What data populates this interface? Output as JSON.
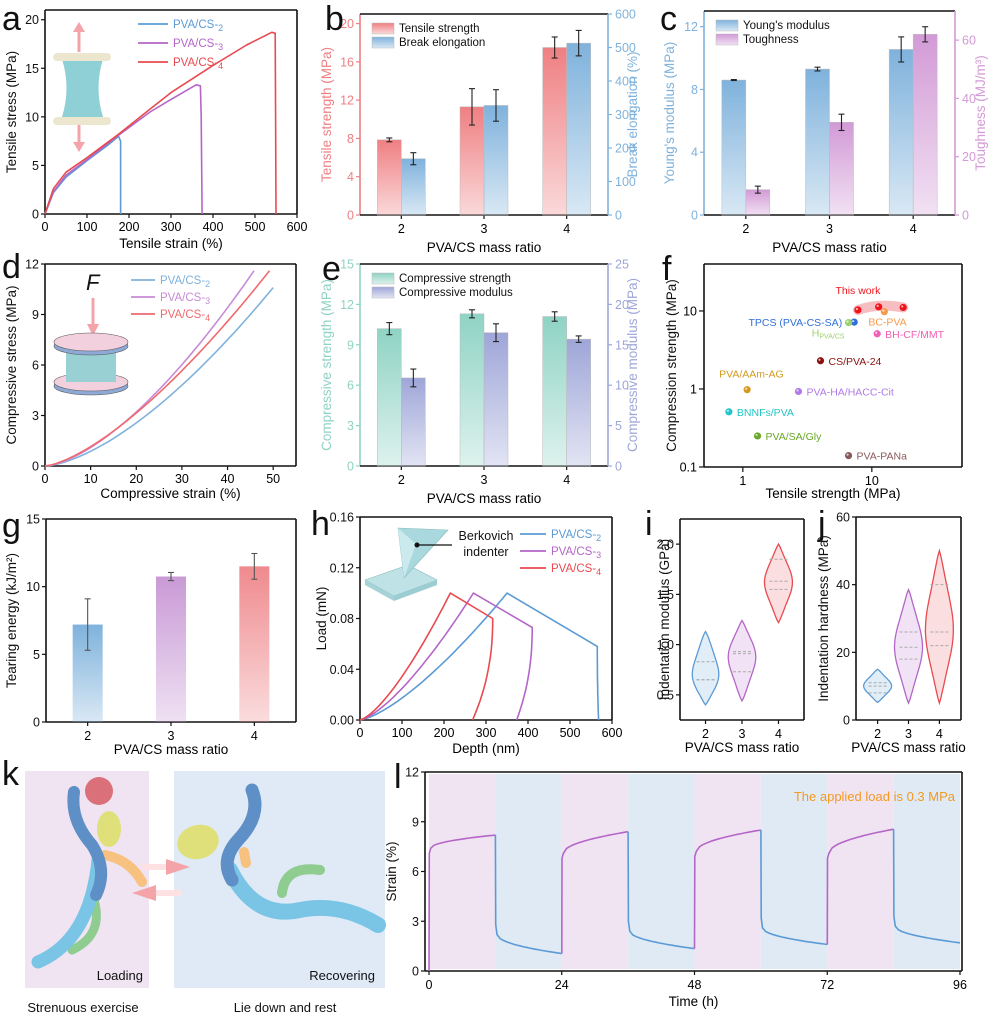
{
  "panel_labels": [
    "a",
    "b",
    "c",
    "d",
    "e",
    "f",
    "g",
    "h",
    "i",
    "j",
    "k",
    "l"
  ],
  "chart_data": [
    {
      "panel": "a",
      "type": "line",
      "xlabel": "Tensile strain (%)",
      "ylabel": "Tensile stress (MPa)",
      "xlim": [
        0,
        600
      ],
      "ylim": [
        0,
        21
      ],
      "xticks": [
        0,
        100,
        200,
        300,
        400,
        500,
        600
      ],
      "yticks": [
        0,
        5,
        10,
        15,
        20
      ],
      "inset": "tensile-specimen-illustration",
      "series": [
        {
          "name": "PVA/CS-2",
          "color": "#5b9bd5",
          "points": [
            [
              0,
              0
            ],
            [
              20,
              2.2
            ],
            [
              50,
              3.8
            ],
            [
              100,
              5.5
            ],
            [
              150,
              7.1
            ],
            [
              175,
              8.0
            ],
            [
              180,
              7.5
            ],
            [
              180,
              0
            ]
          ]
        },
        {
          "name": "PVA/CS-3",
          "color": "#b466c8",
          "points": [
            [
              0,
              0
            ],
            [
              20,
              2.3
            ],
            [
              50,
              4.0
            ],
            [
              100,
              5.6
            ],
            [
              175,
              8.1
            ],
            [
              250,
              10.5
            ],
            [
              300,
              11.8
            ],
            [
              360,
              13.3
            ],
            [
              370,
              13.2
            ],
            [
              372,
              10
            ],
            [
              374,
              0
            ]
          ]
        },
        {
          "name": "PVA/CS-4",
          "color": "#e84a4f",
          "points": [
            [
              0,
              0
            ],
            [
              20,
              2.6
            ],
            [
              50,
              4.3
            ],
            [
              100,
              5.8
            ],
            [
              175,
              8.2
            ],
            [
              250,
              10.8
            ],
            [
              300,
              12.5
            ],
            [
              400,
              15.3
            ],
            [
              480,
              17.4
            ],
            [
              540,
              18.7
            ],
            [
              548,
              18.6
            ],
            [
              549,
              10
            ],
            [
              550,
              0
            ]
          ]
        }
      ]
    },
    {
      "panel": "b",
      "type": "bar",
      "categories": [
        "2",
        "3",
        "4"
      ],
      "xlabel": "PVA/CS mass ratio",
      "ylabel": "Tensile strength (MPa)",
      "ylim": [
        0,
        21
      ],
      "yticks": [
        0,
        4,
        8,
        12,
        16,
        20
      ],
      "y2label": "Break elongation (%)",
      "y2lim": [
        0,
        600
      ],
      "y2ticks": [
        0,
        100,
        200,
        300,
        400,
        500,
        600
      ],
      "series": [
        {
          "name": "Tensile strength",
          "axis": "left",
          "color": "#ef7f82",
          "values": [
            7.85,
            11.3,
            17.5
          ],
          "errors": [
            0.2,
            1.9,
            1.1
          ]
        },
        {
          "name": "Break elongation",
          "axis": "right",
          "color": "#7fb2dc",
          "values": [
            168,
            327,
            513
          ],
          "errors": [
            18,
            47,
            38
          ]
        }
      ]
    },
    {
      "panel": "c",
      "type": "bar",
      "categories": [
        "2",
        "3",
        "4"
      ],
      "xlabel": "PVA/CS mass ratio",
      "ylabel": "Young's modulus (MPa)",
      "ylim": [
        0,
        13
      ],
      "yticks": [
        0,
        4,
        8,
        12
      ],
      "y2label": "Toughness (MJ/m³)",
      "y2lim": [
        0,
        70
      ],
      "y2ticks": [
        0,
        20,
        40,
        60
      ],
      "series": [
        {
          "name": "Young's modulus",
          "axis": "left",
          "color": "#7fb2dc",
          "values": [
            8.6,
            9.3,
            10.55
          ],
          "errors": [
            0.03,
            0.12,
            0.8
          ]
        },
        {
          "name": "Toughness",
          "axis": "right",
          "color": "#d29ad6",
          "values": [
            8.7,
            31.8,
            62.0
          ],
          "errors": [
            1.2,
            2.8,
            2.6
          ]
        }
      ]
    },
    {
      "panel": "d",
      "type": "line",
      "xlabel": "Compressive strain (%)",
      "ylabel": "Compressive stress (MPa)",
      "xlim": [
        0,
        55
      ],
      "ylim": [
        0,
        12
      ],
      "xticks": [
        0,
        10,
        20,
        30,
        40,
        50
      ],
      "yticks": [
        0,
        3,
        6,
        9,
        12
      ],
      "inset": "compression-specimen-illustration",
      "inset_label": "F",
      "series": [
        {
          "name": "PVA/CS-2",
          "color": "#7fb2dc",
          "end": [
            50,
            10.6
          ],
          "exp": 1.55
        },
        {
          "name": "PVA/CS-3",
          "color": "#c88ad6",
          "end": [
            45.8,
            11.6
          ],
          "exp": 1.55
        },
        {
          "name": "PVA/CS-4",
          "color": "#ef6a6e",
          "end": [
            49.2,
            11.6
          ],
          "exp": 1.45
        }
      ]
    },
    {
      "panel": "e",
      "type": "bar",
      "categories": [
        "2",
        "3",
        "4"
      ],
      "xlabel": "PVA/CS mass ratio",
      "ylabel": "Compressive strength (MPa)",
      "ylim": [
        0,
        15
      ],
      "yticks": [
        0,
        3,
        6,
        9,
        12,
        15
      ],
      "y2label": "Compressive modulus (MPa)",
      "y2lim": [
        0,
        25
      ],
      "y2ticks": [
        0,
        5,
        10,
        15,
        20,
        25
      ],
      "series": [
        {
          "name": "Compressive strength",
          "axis": "left",
          "color": "#8fd3c4",
          "values": [
            10.2,
            11.3,
            11.1
          ],
          "errors": [
            0.45,
            0.3,
            0.35
          ]
        },
        {
          "name": "Compressive modulus",
          "axis": "right",
          "color": "#9ea6d8",
          "values": [
            10.9,
            16.5,
            15.7
          ],
          "errors": [
            1.1,
            1.1,
            0.4
          ]
        }
      ]
    },
    {
      "panel": "f",
      "type": "scatter",
      "xlabel": "Tensile strength (MPa)",
      "ylabel": "Compression strength (MPa)",
      "xscale": "log",
      "yscale": "log",
      "xlim": [
        0.5,
        50
      ],
      "ylim": [
        0.1,
        40
      ],
      "xticks": [
        1,
        10
      ],
      "yticks": [
        0.1,
        1,
        10
      ],
      "points": [
        {
          "label": "This work",
          "x": 7.8,
          "y": 10.3,
          "color": "#f2141c"
        },
        {
          "label": "",
          "x": 11.3,
          "y": 11.3,
          "color": "#f2141c"
        },
        {
          "label": "",
          "x": 17.5,
          "y": 11.1,
          "color": "#f2141c"
        },
        {
          "label": "BC-PVA",
          "x": 12.5,
          "y": 9.8,
          "color": "#f7994a"
        },
        {
          "label": "TPCS (PVA-CS-SA)",
          "x": 7.3,
          "y": 7.2,
          "color": "#2f6fd8"
        },
        {
          "label": "H_PVA/CS",
          "x": 6.6,
          "y": 7.1,
          "color": "#9bd36a"
        },
        {
          "label": "BH-CF/MMT",
          "x": 11.0,
          "y": 5.1,
          "color": "#f060b4"
        },
        {
          "label": "CS/PVA-24",
          "x": 4.0,
          "y": 2.3,
          "color": "#8b1010"
        },
        {
          "label": "PVA/AAm-AG",
          "x": 1.08,
          "y": 0.98,
          "color": "#d39a1e"
        },
        {
          "label": "PVA-HA/HACC-Cit",
          "x": 2.7,
          "y": 0.93,
          "color": "#b07ae8"
        },
        {
          "label": "BNNFs/PVA",
          "x": 0.78,
          "y": 0.51,
          "color": "#22c5c8"
        },
        {
          "label": "PVA/SA/Gly",
          "x": 1.3,
          "y": 0.25,
          "color": "#6ba82a"
        },
        {
          "label": "PVA-PANa",
          "x": 6.6,
          "y": 0.14,
          "color": "#8a5a5a"
        }
      ]
    },
    {
      "panel": "g",
      "type": "bar",
      "categories": [
        "2",
        "3",
        "4"
      ],
      "xlabel": "PVA/CS mass ratio",
      "ylabel": "Tearing energy (kJ/m²)",
      "ylim": [
        0,
        15
      ],
      "yticks": [
        0,
        5,
        10,
        15
      ],
      "series": [
        {
          "name": "Tearing energy",
          "colors": [
            "#7fb2dc",
            "#c99ad6",
            "#ef8a8e"
          ],
          "values": [
            7.2,
            10.75,
            11.5
          ],
          "errors": [
            1.9,
            0.3,
            0.95
          ]
        }
      ]
    },
    {
      "panel": "h",
      "type": "line",
      "xlabel": "Depth (nm)",
      "ylabel": "Load (mN)",
      "xlim": [
        0,
        600
      ],
      "ylim": [
        0,
        0.16
      ],
      "xticks": [
        0,
        100,
        200,
        300,
        400,
        500,
        600
      ],
      "yticks": [
        "0.00",
        "0.04",
        "0.08",
        "0.12",
        "0.16"
      ],
      "inset": "berkovich-indenter-illustration",
      "inset_label": "Berkovich indenter",
      "series": [
        {
          "name": "PVA/CS-2",
          "color": "#5b9bd5",
          "peak": [
            350,
            0.1
          ],
          "hold_end": [
            565,
            0.058
          ],
          "unload_end": [
            568,
            0
          ]
        },
        {
          "name": "PVA/CS-3",
          "color": "#b466c8",
          "peak": [
            270,
            0.1
          ],
          "hold_end": [
            410,
            0.073
          ],
          "unload_end": [
            373,
            0
          ]
        },
        {
          "name": "PVA/CS-4",
          "color": "#e84a4f",
          "peak": [
            215,
            0.1
          ],
          "hold_end": [
            316,
            0.08
          ],
          "unload_end": [
            268,
            0
          ]
        }
      ]
    },
    {
      "panel": "i",
      "type": "violin",
      "categories": [
        "2",
        "3",
        "4"
      ],
      "xlabel": "PVA/CS mass ratio",
      "ylabel": "Indentation modulus (GPa)",
      "ylim": [
        0.25,
        2.25
      ],
      "yticks": [
        "0.5",
        "1.0",
        "1.5",
        "2.0"
      ],
      "series": [
        {
          "category": "2",
          "color": "#5b9bd5",
          "min": 0.4,
          "max": 1.13,
          "q1": 0.65,
          "median": 0.65,
          "q3": 0.83
        },
        {
          "category": "3",
          "color": "#b466c8",
          "min": 0.44,
          "max": 1.24,
          "q1": 0.73,
          "median": 0.91,
          "q3": 0.93
        },
        {
          "category": "4",
          "color": "#e84a4f",
          "min": 1.22,
          "max": 2.0,
          "q1": 1.55,
          "median": 1.63,
          "q3": 1.85
        }
      ]
    },
    {
      "panel": "j",
      "type": "violin",
      "categories": [
        "2",
        "3",
        "4"
      ],
      "xlabel": "PVA/CS mass ratio",
      "ylabel": "Indentation hardness (MPa)",
      "ylim": [
        0,
        60
      ],
      "yticks": [
        0,
        20,
        40,
        60
      ],
      "series": [
        {
          "category": "2",
          "color": "#5b9bd5",
          "min": 5.2,
          "max": 15,
          "q1": 8,
          "median": 10,
          "q3": 11
        },
        {
          "category": "3",
          "color": "#b466c8",
          "min": 5,
          "max": 38.5,
          "q1": 18,
          "median": 21.5,
          "q3": 26
        },
        {
          "category": "4",
          "color": "#e84a4f",
          "min": 5,
          "max": 50,
          "q1": 22,
          "median": 26,
          "q3": 40
        }
      ]
    },
    {
      "panel": "l",
      "type": "line",
      "xlabel": "Time (h)",
      "ylabel": "Strain (%)",
      "xlim": [
        0,
        96
      ],
      "ylim": [
        0,
        12
      ],
      "xticks": [
        0,
        24,
        48,
        72,
        96
      ],
      "yticks": [
        0,
        3,
        6,
        9,
        12
      ],
      "annotation": "The applied load is 0.3 MPa",
      "cycles": [
        {
          "load_start": 0,
          "load_end": 12,
          "strain_jump": 7.4,
          "strain_peak": 8.2,
          "recover_end": 24,
          "strain_drop": 2.4,
          "strain_min": 1.05
        },
        {
          "load_start": 24,
          "load_end": 36,
          "strain_jump": 7.1,
          "strain_peak": 8.4,
          "recover_end": 48,
          "strain_drop": 2.6,
          "strain_min": 1.35
        },
        {
          "load_start": 48,
          "load_end": 60,
          "strain_jump": 7.2,
          "strain_peak": 8.5,
          "recover_end": 72,
          "strain_drop": 2.8,
          "strain_min": 1.6
        },
        {
          "load_start": 72,
          "load_end": 84,
          "strain_jump": 7.1,
          "strain_peak": 8.55,
          "recover_end": 96,
          "strain_drop": 2.9,
          "strain_min": 1.7
        }
      ],
      "load_color": "#b466c8",
      "recover_color": "#5b9bd5"
    }
  ],
  "panel_k": {
    "left_label": "Loading",
    "right_label": "Recovering",
    "left_caption": "Strenuous exercise",
    "right_caption": "Lie down and rest"
  }
}
